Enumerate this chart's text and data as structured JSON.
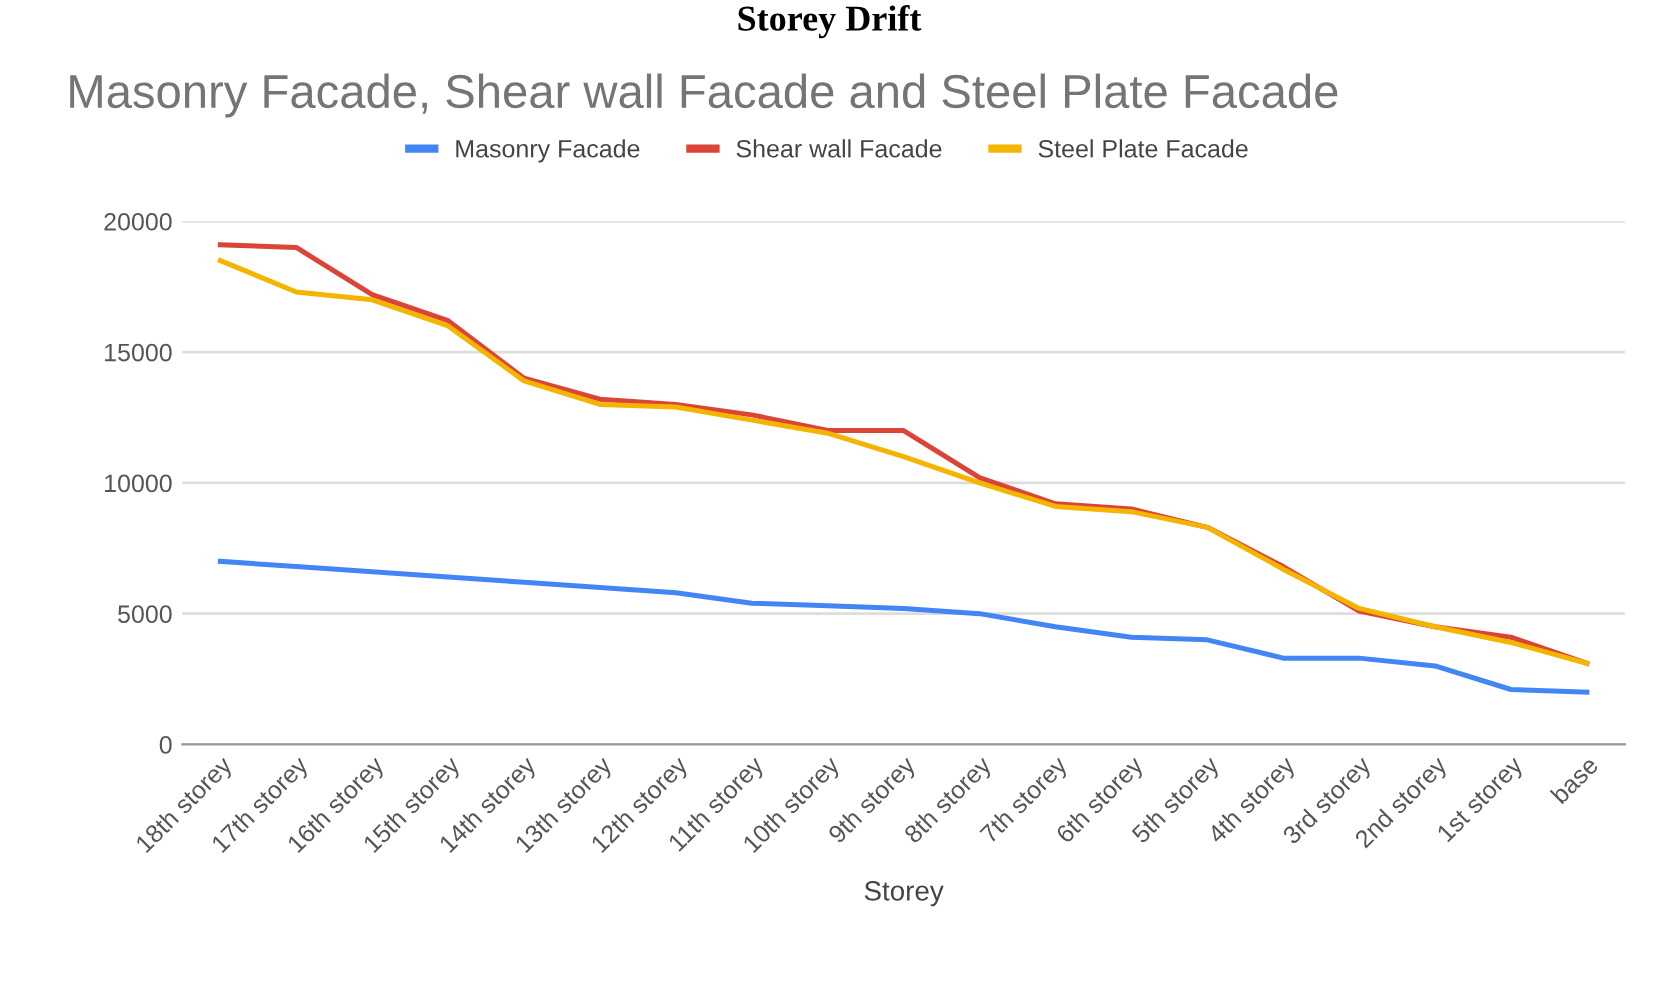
{
  "chart_data": {
    "type": "line",
    "title": "Masonry Facade, Shear wall Facade and Steel Plate Facade",
    "xlabel": "Storey",
    "annotations": [
      "Storey Drift"
    ],
    "categories": [
      "18th storey",
      "17th storey",
      "16th storey",
      "15th storey",
      "14th storey",
      "13th storey",
      "12th storey",
      "11th storey",
      "10th storey",
      "9th storey",
      "8th storey",
      "7th storey",
      "6th storey",
      "5th storey",
      "4th storey",
      "3rd storey",
      "2nd storey",
      "1st storey",
      "base"
    ],
    "series": [
      {
        "name": "Masonry Facade",
        "color": "#4285f4",
        "values": [
          7000,
          6800,
          6600,
          6400,
          6200,
          6000,
          5800,
          5400,
          5300,
          5200,
          5000,
          4500,
          4100,
          4000,
          3300,
          3300,
          3000,
          2100,
          2000
        ]
      },
      {
        "name": "Shear wall Facade",
        "color": "#db4437",
        "values": [
          19100,
          19000,
          17200,
          16200,
          14000,
          13200,
          13000,
          12600,
          12000,
          12000,
          10200,
          9200,
          9000,
          8300,
          6800,
          5100,
          4500,
          4100,
          3100
        ]
      },
      {
        "name": "Steel Plate Facade",
        "color": "#f4b400",
        "values": [
          18500,
          17300,
          17000,
          16000,
          13900,
          13000,
          12900,
          12400,
          11900,
          11000,
          10000,
          9100,
          8900,
          8300,
          6700,
          5200,
          4500,
          3900,
          3100
        ]
      }
    ],
    "ylim": [
      0,
      20000
    ],
    "yticks": [
      0,
      5000,
      10000,
      15000,
      20000
    ],
    "grid": "y",
    "legend": "top",
    "marker": "none",
    "line_style": "solid"
  }
}
